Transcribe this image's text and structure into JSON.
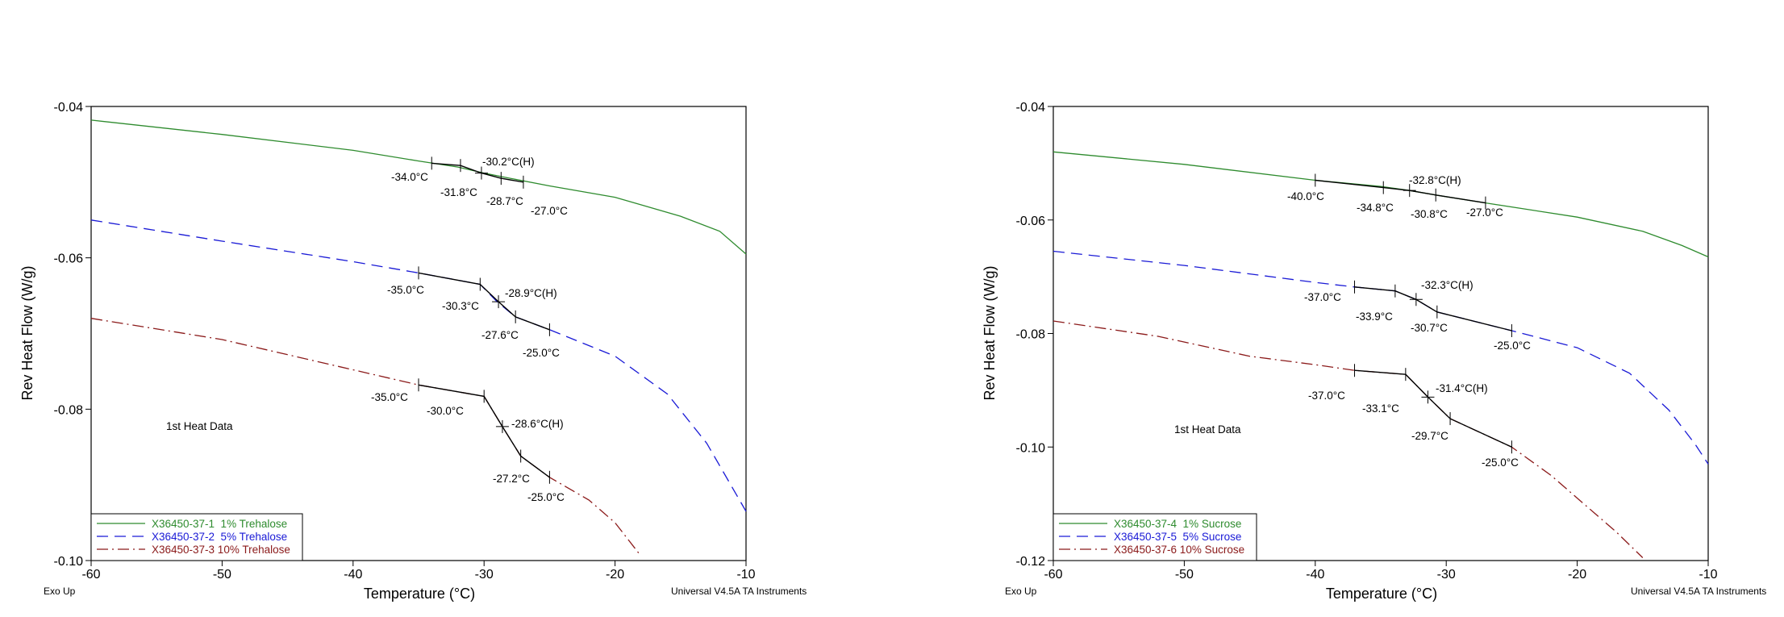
{
  "charts": [
    {
      "id": "left",
      "ylabel": "Rev Heat Flow (W/g)",
      "xlabel": "Temperature (°C)",
      "corner_left": "Exo Up",
      "corner_right": "Universal V4.5A TA Instruments",
      "note": "1st Heat Data",
      "xticks": [
        "-60",
        "-50",
        "-40",
        "-30",
        "-20",
        "-10"
      ],
      "yticks": [
        "-0.04",
        "-0.06",
        "-0.08",
        "-0.10"
      ],
      "legend": [
        "X36450-37-1  1% Trehalose",
        "X36450-37-2  5% Trehalose",
        "X36450-37-3 10% Trehalose"
      ],
      "annotations": [
        "-34.0°C",
        "-31.8°C",
        "-30.2°C(H)",
        "-28.7°C",
        "-27.0°C",
        "-35.0°C",
        "-30.3°C",
        "-28.9°C(H)",
        "-27.6°C",
        "-25.0°C",
        "-35.0°C",
        "-30.0°C",
        "-28.6°C(H)",
        "-27.2°C",
        "-25.0°C"
      ]
    },
    {
      "id": "right",
      "ylabel": "Rev Heat Flow (W/g)",
      "xlabel": "Temperature (°C)",
      "corner_left": "Exo Up",
      "corner_right": "Universal V4.5A TA Instruments",
      "note": "1st Heat Data",
      "xticks": [
        "-60",
        "-50",
        "-40",
        "-30",
        "-20",
        "-10"
      ],
      "yticks": [
        "-0.04",
        "-0.06",
        "-0.08",
        "-0.10",
        "-0.12"
      ],
      "legend": [
        "X36450-37-4  1% Sucrose",
        "X36450-37-5  5% Sucrose",
        "X36450-37-6 10% Sucrose"
      ],
      "annotations": [
        "-40.0°C",
        "-34.8°C",
        "-32.8°C(H)",
        "-30.8°C",
        "-27.0°C",
        "-37.0°C",
        "-33.9°C",
        "-32.3°C(H)",
        "-30.7°C",
        "-25.0°C",
        "-37.0°C",
        "-33.1°C",
        "-31.4°C(H)",
        "-29.7°C",
        "-25.0°C"
      ]
    }
  ],
  "colors": {
    "green": "#2e8b2e",
    "blue": "#1a1ad6",
    "red": "#8b1a1a",
    "onset": "#000000"
  },
  "chart_data": [
    {
      "type": "line",
      "xlabel": "Temperature (°C)",
      "ylabel": "Rev Heat Flow (W/g)",
      "xlim": [
        -60,
        -10
      ],
      "ylim": [
        -0.1,
        -0.04
      ],
      "grid": false,
      "legend_position": "bottom-left",
      "series": [
        {
          "name": "X36450-37-1  1% Trehalose",
          "color": "#2e8b2e",
          "dash": "solid",
          "x": [
            -60,
            -50,
            -40,
            -35,
            -32,
            -30,
            -28,
            -25,
            -20,
            -15,
            -12,
            -10
          ],
          "y": [
            -0.0418,
            -0.0437,
            -0.0458,
            -0.0472,
            -0.048,
            -0.0488,
            -0.0495,
            -0.0505,
            -0.052,
            -0.0545,
            -0.0565,
            -0.0595
          ]
        },
        {
          "name": "X36450-37-2  5% Trehalose",
          "color": "#1a1ad6",
          "dash": "dashed",
          "x": [
            -60,
            -50,
            -40,
            -35,
            -30.3,
            -29,
            -27.6,
            -25,
            -20,
            -16,
            -13,
            -11,
            -10
          ],
          "y": [
            -0.055,
            -0.0578,
            -0.0605,
            -0.062,
            -0.0635,
            -0.0658,
            -0.0678,
            -0.0695,
            -0.073,
            -0.078,
            -0.0845,
            -0.0905,
            -0.0935
          ]
        },
        {
          "name": "X36450-37-3 10% Trehalose",
          "color": "#8b1a1a",
          "dash": "dashdot",
          "x": [
            -60,
            -50,
            -42,
            -35,
            -30,
            -28.6,
            -27.2,
            -25,
            -22,
            -20,
            -18.2
          ],
          "y": [
            -0.068,
            -0.0708,
            -0.074,
            -0.0768,
            -0.0783,
            -0.0823,
            -0.0862,
            -0.089,
            -0.092,
            -0.095,
            -0.099
          ]
        }
      ],
      "onset_points": [
        [
          -34.0,
          -0.0475
        ],
        [
          -31.8,
          -0.0478
        ],
        [
          -30.2,
          -0.0488
        ],
        [
          -28.7,
          -0.0495
        ],
        [
          -27.0,
          -0.05
        ],
        [
          -35.0,
          -0.062
        ],
        [
          -30.3,
          -0.0635
        ],
        [
          -28.9,
          -0.0658
        ],
        [
          -27.6,
          -0.0678
        ],
        [
          -25.0,
          -0.0695
        ],
        [
          -35.0,
          -0.0768
        ],
        [
          -30.0,
          -0.0783
        ],
        [
          -28.6,
          -0.0823
        ],
        [
          -27.2,
          -0.0862
        ],
        [
          -25.0,
          -0.089
        ]
      ]
    },
    {
      "type": "line",
      "xlabel": "Temperature (°C)",
      "ylabel": "Rev Heat Flow (W/g)",
      "xlim": [
        -60,
        -10
      ],
      "ylim": [
        -0.12,
        -0.04
      ],
      "grid": false,
      "legend_position": "bottom-left",
      "series": [
        {
          "name": "X36450-37-4  1% Sucrose",
          "color": "#2e8b2e",
          "dash": "solid",
          "x": [
            -60,
            -50,
            -40,
            -35,
            -32.8,
            -30.8,
            -27,
            -20,
            -15,
            -12,
            -10
          ],
          "y": [
            -0.048,
            -0.0502,
            -0.053,
            -0.0541,
            -0.0548,
            -0.0556,
            -0.057,
            -0.0595,
            -0.062,
            -0.0645,
            -0.0665
          ]
        },
        {
          "name": "X36450-37-5  5% Sucrose",
          "color": "#1a1ad6",
          "dash": "dashed",
          "x": [
            -60,
            -50,
            -40,
            -37,
            -33.9,
            -32.3,
            -30.7,
            -25,
            -20,
            -16,
            -13,
            -11,
            -10
          ],
          "y": [
            -0.0655,
            -0.068,
            -0.071,
            -0.0718,
            -0.0725,
            -0.074,
            -0.0762,
            -0.0795,
            -0.0825,
            -0.087,
            -0.0935,
            -0.0995,
            -0.103
          ]
        },
        {
          "name": "X36450-37-6 10% Sucrose",
          "color": "#8b1a1a",
          "dash": "dashdot",
          "x": [
            -60,
            -52,
            -45,
            -40,
            -37,
            -33.1,
            -31.4,
            -29.7,
            -25,
            -22,
            -20,
            -17,
            -15
          ],
          "y": [
            -0.0778,
            -0.0805,
            -0.084,
            -0.0855,
            -0.0865,
            -0.0872,
            -0.0912,
            -0.095,
            -0.1,
            -0.105,
            -0.109,
            -0.115,
            -0.1195
          ]
        }
      ],
      "onset_points": [
        [
          -40.0,
          -0.053
        ],
        [
          -34.8,
          -0.0543
        ],
        [
          -32.8,
          -0.0548
        ],
        [
          -30.8,
          -0.0556
        ],
        [
          -27.0,
          -0.057
        ],
        [
          -37.0,
          -0.0718
        ],
        [
          -33.9,
          -0.0725
        ],
        [
          -32.3,
          -0.074
        ],
        [
          -30.7,
          -0.0762
        ],
        [
          -25.0,
          -0.0795
        ],
        [
          -37.0,
          -0.0865
        ],
        [
          -33.1,
          -0.0872
        ],
        [
          -31.4,
          -0.0912
        ],
        [
          -29.7,
          -0.095
        ],
        [
          -25.0,
          -0.1
        ]
      ]
    }
  ]
}
